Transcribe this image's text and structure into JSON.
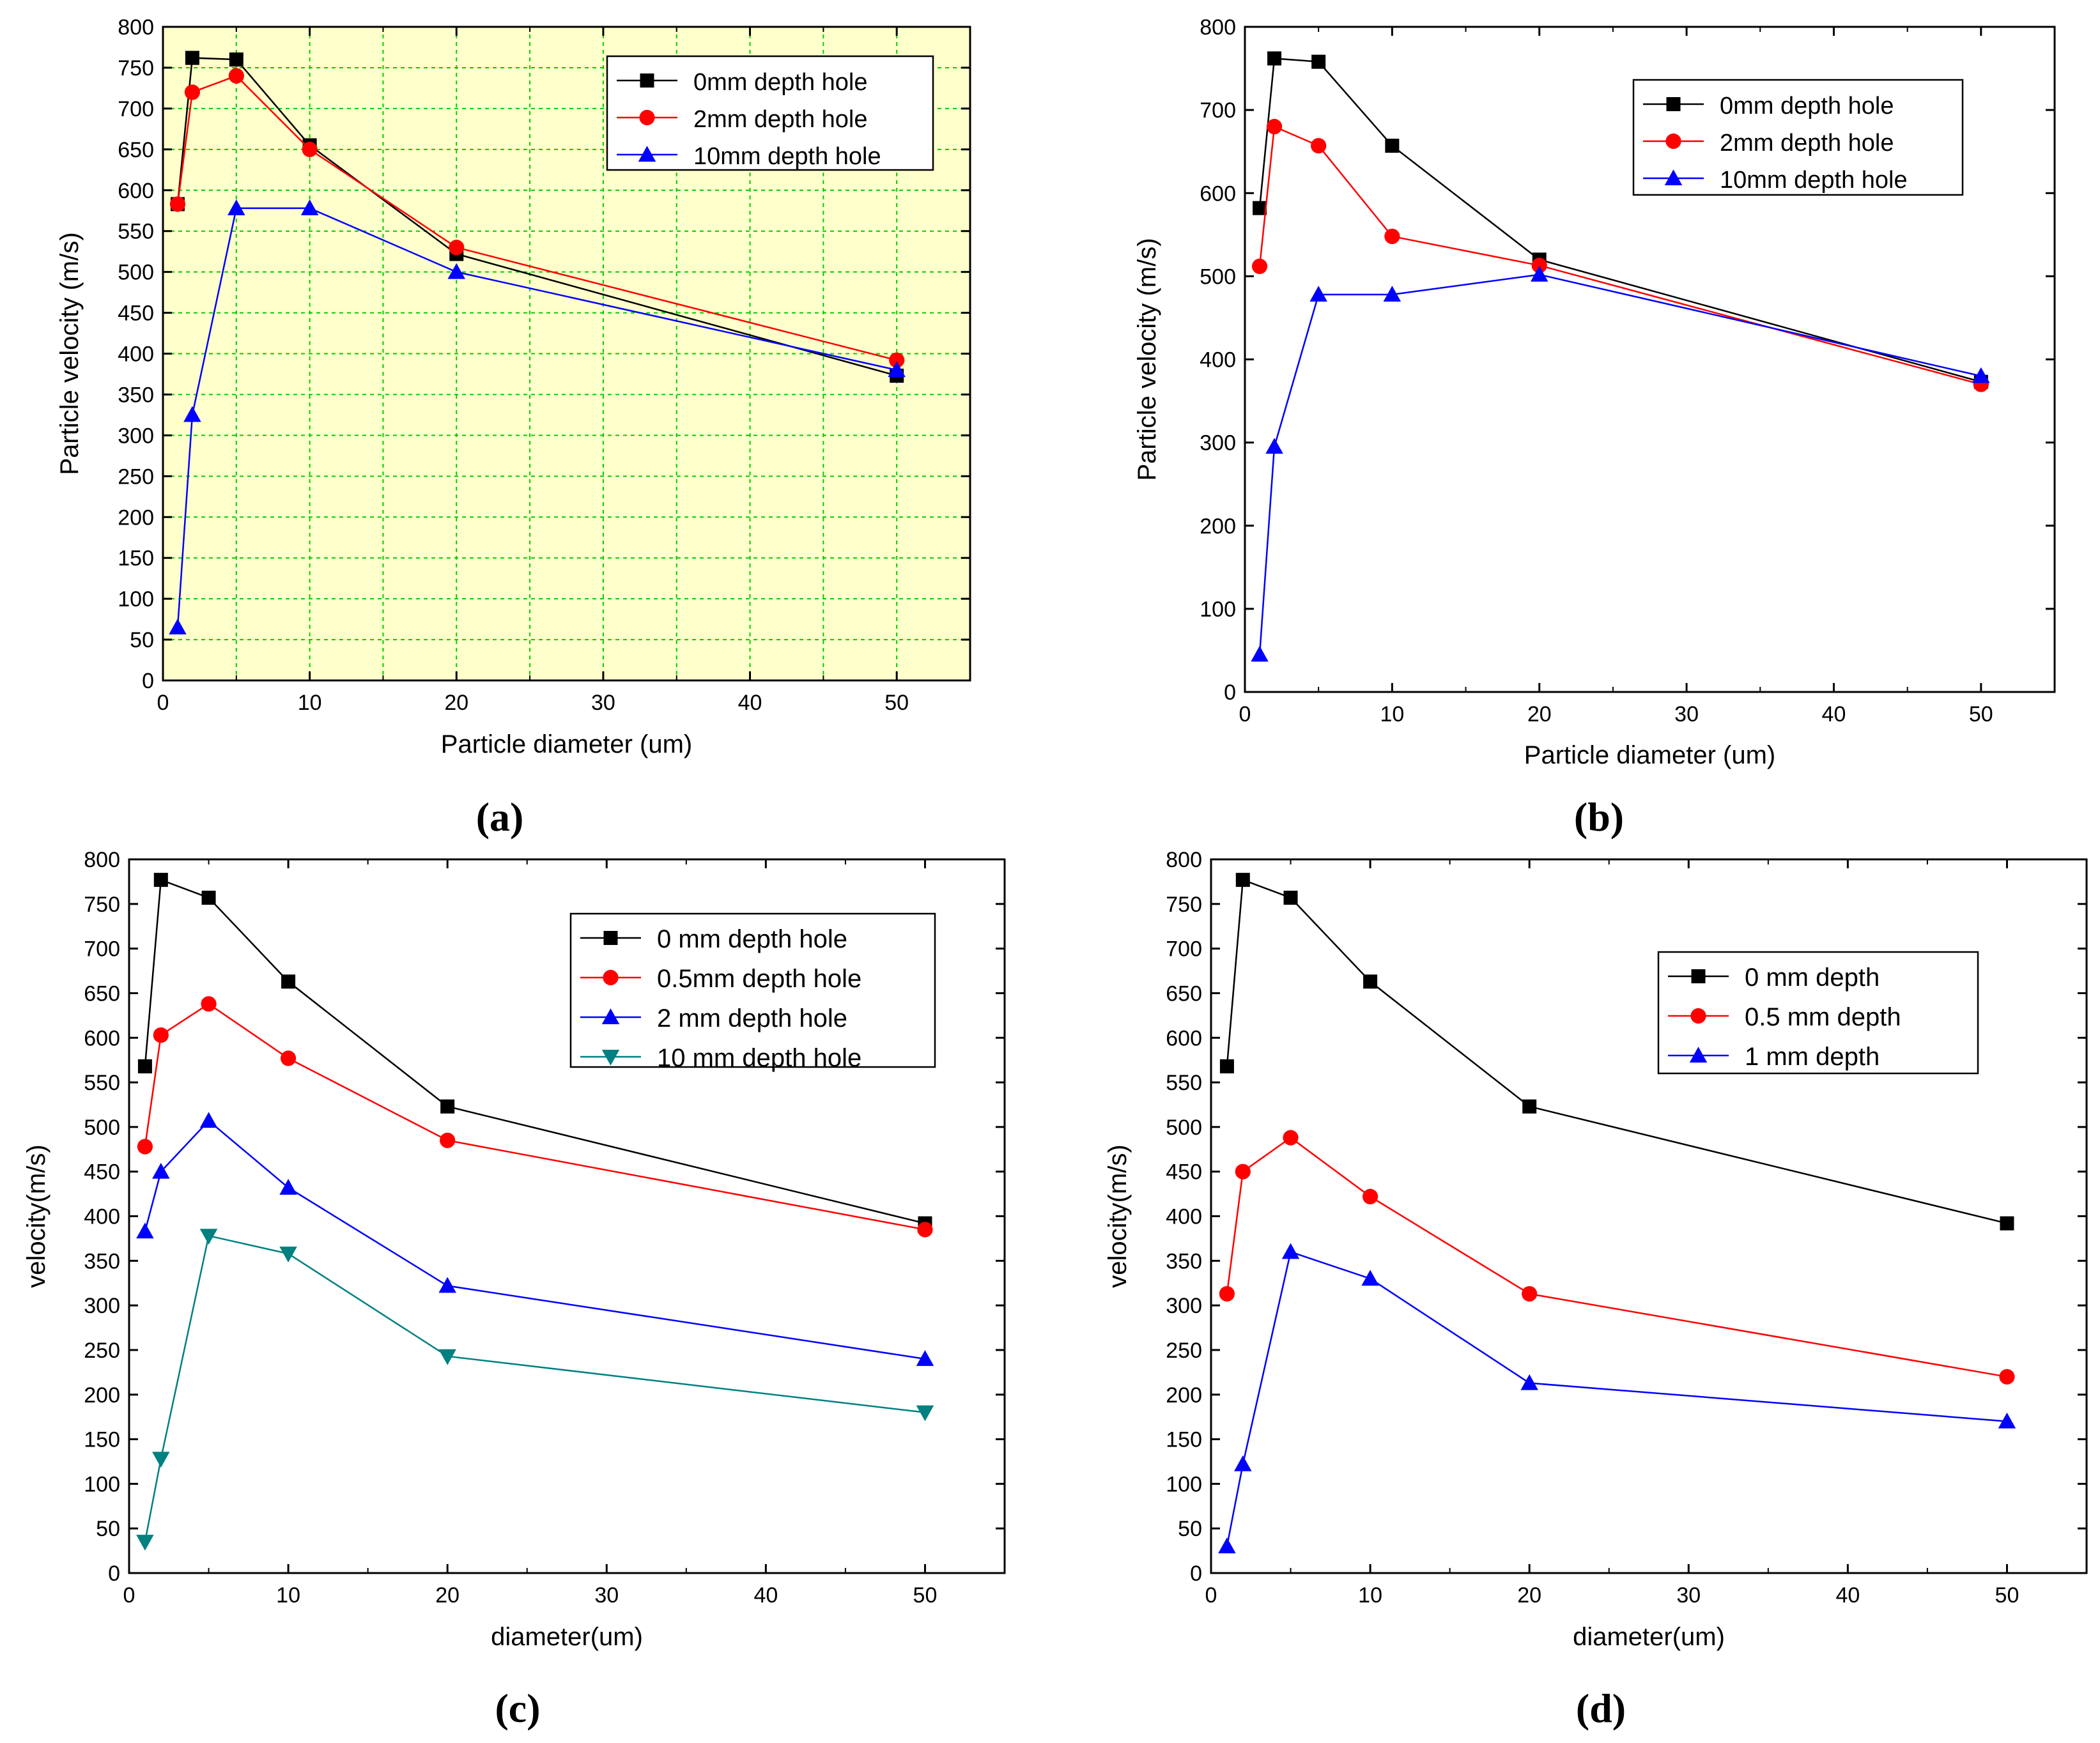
{
  "chart_data": [
    {
      "type": "line",
      "panel_label": "(a)",
      "xlabel": "Particle diameter (um)",
      "ylabel": "Particle velocity (m/s)",
      "xlim": [
        0,
        55
      ],
      "ylim": [
        0,
        800
      ],
      "xticks": [
        0,
        10,
        20,
        30,
        40,
        50
      ],
      "yticks": [
        0,
        50,
        100,
        150,
        200,
        250,
        300,
        350,
        400,
        450,
        500,
        550,
        600,
        650,
        700,
        750,
        800
      ],
      "grid": true,
      "legend_position": "top-right",
      "series": [
        {
          "name": "0mm depth hole",
          "color": "#000000",
          "marker": "square",
          "x": [
            1,
            2,
            5,
            10,
            20,
            50
          ],
          "y": [
            583,
            762,
            760,
            655,
            522,
            373
          ]
        },
        {
          "name": "2mm depth hole",
          "color": "#ff0000",
          "marker": "circle",
          "x": [
            1,
            2,
            5,
            10,
            20,
            50
          ],
          "y": [
            583,
            720,
            740,
            650,
            530,
            392
          ]
        },
        {
          "name": "10mm depth hole",
          "color": "#0000ff",
          "marker": "triangle-up",
          "x": [
            1,
            2,
            5,
            10,
            20,
            50
          ],
          "y": [
            65,
            325,
            578,
            578,
            500,
            380
          ]
        }
      ]
    },
    {
      "type": "line",
      "panel_label": "(b)",
      "xlabel": "Particle diameter (um)",
      "ylabel": "Particle velocity (m/s)",
      "xlim": [
        0,
        55
      ],
      "ylim": [
        0,
        800
      ],
      "xticks": [
        0,
        10,
        20,
        30,
        40,
        50
      ],
      "yticks": [
        0,
        100,
        200,
        300,
        400,
        500,
        600,
        700,
        800
      ],
      "grid": false,
      "legend_position": "top-right",
      "series": [
        {
          "name": "0mm depth hole",
          "color": "#000000",
          "marker": "square",
          "x": [
            1,
            2,
            5,
            10,
            20,
            50
          ],
          "y": [
            582,
            762,
            758,
            657,
            520,
            373
          ]
        },
        {
          "name": "2mm depth hole",
          "color": "#ff0000",
          "marker": "circle",
          "x": [
            1,
            2,
            5,
            10,
            20,
            50
          ],
          "y": [
            512,
            680,
            657,
            548,
            513,
            370
          ]
        },
        {
          "name": "10mm depth hole",
          "color": "#0000ff",
          "marker": "triangle-up",
          "x": [
            1,
            2,
            5,
            10,
            20,
            50
          ],
          "y": [
            45,
            295,
            478,
            478,
            502,
            380
          ]
        }
      ]
    },
    {
      "type": "line",
      "panel_label": "(c)",
      "xlabel": "diameter(um)",
      "ylabel": "velocity(m/s)",
      "xlim": [
        0,
        55
      ],
      "ylim": [
        0,
        800
      ],
      "xticks": [
        0,
        10,
        20,
        30,
        40,
        50
      ],
      "yticks": [
        0,
        50,
        100,
        150,
        200,
        250,
        300,
        350,
        400,
        450,
        500,
        550,
        600,
        650,
        700,
        750,
        800
      ],
      "grid": false,
      "legend_position": "top-right",
      "series": [
        {
          "name": "0 mm depth hole",
          "color": "#000000",
          "marker": "square",
          "x": [
            1,
            2,
            5,
            10,
            20,
            50
          ],
          "y": [
            568,
            777,
            757,
            663,
            523,
            392
          ]
        },
        {
          "name": "0.5mm depth hole",
          "color": "#ff0000",
          "marker": "circle",
          "x": [
            1,
            2,
            5,
            10,
            20,
            50
          ],
          "y": [
            478,
            603,
            638,
            577,
            485,
            385
          ]
        },
        {
          "name": "2 mm depth hole",
          "color": "#0000ff",
          "marker": "triangle-up",
          "x": [
            1,
            2,
            5,
            10,
            20,
            50
          ],
          "y": [
            383,
            450,
            507,
            432,
            322,
            240
          ]
        },
        {
          "name": "10 mm depth hole",
          "color": "#008080",
          "marker": "triangle-down",
          "x": [
            1,
            2,
            5,
            10,
            20,
            50
          ],
          "y": [
            35,
            128,
            378,
            358,
            243,
            180
          ]
        }
      ]
    },
    {
      "type": "line",
      "panel_label": "(d)",
      "xlabel": "diameter(um)",
      "ylabel": "velocity(m/s)",
      "xlim": [
        0,
        55
      ],
      "ylim": [
        0,
        800
      ],
      "xticks": [
        0,
        10,
        20,
        30,
        40,
        50
      ],
      "yticks": [
        0,
        50,
        100,
        150,
        200,
        250,
        300,
        350,
        400,
        450,
        500,
        550,
        600,
        650,
        700,
        750,
        800
      ],
      "grid": false,
      "legend_position": "top-right",
      "series": [
        {
          "name": "0 mm depth",
          "color": "#000000",
          "marker": "square",
          "x": [
            1,
            2,
            5,
            10,
            20,
            50
          ],
          "y": [
            568,
            777,
            757,
            663,
            523,
            392
          ]
        },
        {
          "name": "0.5 mm depth",
          "color": "#ff0000",
          "marker": "circle",
          "x": [
            1,
            2,
            5,
            10,
            20,
            50
          ],
          "y": [
            313,
            450,
            488,
            422,
            313,
            220
          ]
        },
        {
          "name": "1 mm depth",
          "color": "#0000ff",
          "marker": "triangle-up",
          "x": [
            1,
            2,
            5,
            10,
            20,
            50
          ],
          "y": [
            30,
            122,
            360,
            330,
            213,
            170
          ]
        }
      ]
    }
  ]
}
